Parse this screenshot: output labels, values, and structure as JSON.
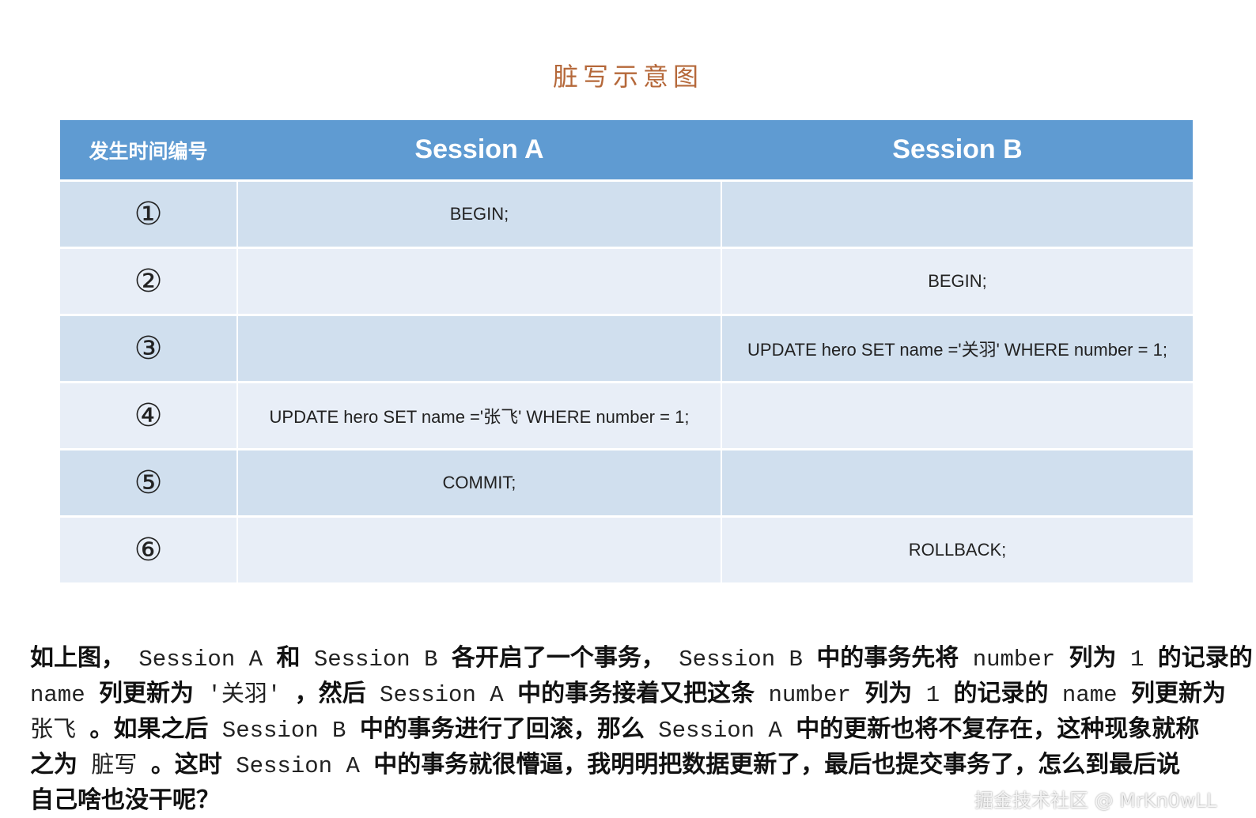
{
  "title": "脏写示意图",
  "table": {
    "headers": [
      "发生时间编号",
      "Session A",
      "Session B"
    ],
    "rows": [
      {
        "num": "①",
        "a": "BEGIN;",
        "b": ""
      },
      {
        "num": "②",
        "a": "",
        "b": "BEGIN;"
      },
      {
        "num": "③",
        "a": "",
        "b": "UPDATE hero SET name ='关羽' WHERE number = 1;"
      },
      {
        "num": "④",
        "a": "UPDATE hero SET name ='张飞' WHERE number = 1;",
        "b": ""
      },
      {
        "num": "⑤",
        "a": "COMMIT;",
        "b": ""
      },
      {
        "num": "⑥",
        "a": "",
        "b": "ROLLBACK;"
      }
    ]
  },
  "paragraph": [
    [
      {
        "t": "如上图，"
      },
      {
        "t": " Session A ",
        "code": true
      },
      {
        "t": "和"
      },
      {
        "t": " Session B ",
        "code": true
      },
      {
        "t": "各开启了一个事务，"
      },
      {
        "t": " Session B ",
        "code": true
      },
      {
        "t": "中的事务先将"
      },
      {
        "t": " number ",
        "code": true
      },
      {
        "t": "列为"
      },
      {
        "t": " 1 ",
        "code": true
      },
      {
        "t": "的记录的"
      }
    ],
    [
      {
        "t": " name ",
        "code": true
      },
      {
        "t": "列更新为"
      },
      {
        "t": " '关羽' ",
        "code": true
      },
      {
        "t": "，然后"
      },
      {
        "t": " Session A ",
        "code": true
      },
      {
        "t": "中的事务接着又把这条"
      },
      {
        "t": " number ",
        "code": true
      },
      {
        "t": "列为"
      },
      {
        "t": " 1 ",
        "code": true
      },
      {
        "t": "的记录的"
      },
      {
        "t": " name ",
        "code": true
      },
      {
        "t": "列更新为"
      }
    ],
    [
      {
        "t": " 张飞 ",
        "code": true
      },
      {
        "t": "。如果之后"
      },
      {
        "t": " Session B ",
        "code": true
      },
      {
        "t": "中的事务进行了回滚，那么"
      },
      {
        "t": " Session A ",
        "code": true
      },
      {
        "t": "中的更新也将不复存在，这种现象就称"
      }
    ],
    [
      {
        "t": "之为"
      },
      {
        "t": " 脏写 ",
        "code": true
      },
      {
        "t": "。这时"
      },
      {
        "t": " Session A ",
        "code": true
      },
      {
        "t": "中的事务就很懵逼，我明明把数据更新了，最后也提交事务了，怎么到最后说"
      }
    ],
    [
      {
        "t": "自己啥也没干呢？"
      }
    ]
  ],
  "watermark": "掘金技术社区 @ MrKn0wLL"
}
